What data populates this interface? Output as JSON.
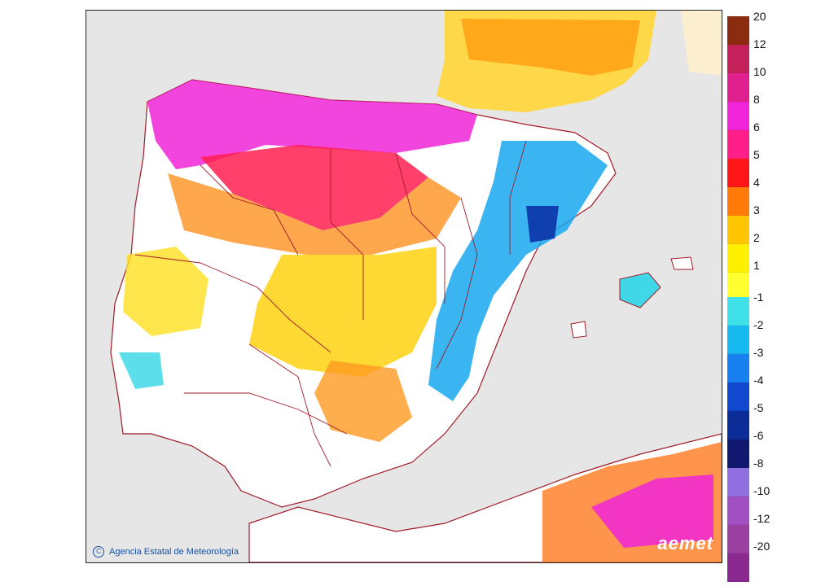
{
  "map": {
    "copyright": "Agencia Estatal de Meteorología",
    "logo_text": "aemet",
    "colors": {
      "sea": "#e6e6e6",
      "land_neutral": "#ffffff",
      "borders": "#a11a2a",
      "neighbor_land": "#fcefd0"
    }
  },
  "legend": {
    "positive": [
      {
        "label": "20",
        "color": "#8b2b10"
      },
      {
        "label": "12",
        "color": "#c4205a"
      },
      {
        "label": "10",
        "color": "#e0208e"
      },
      {
        "label": "8",
        "color": "#f024d8"
      },
      {
        "label": "6",
        "color": "#ff1e8a"
      },
      {
        "label": "5",
        "color": "#ff1616"
      },
      {
        "label": "4",
        "color": "#ff7a08"
      },
      {
        "label": "3",
        "color": "#ffc400"
      },
      {
        "label": "2",
        "color": "#fff000"
      },
      {
        "label": "1",
        "color": "#ffff30"
      }
    ],
    "negative": [
      {
        "label": "-1",
        "color": "#40e0e8"
      },
      {
        "label": "-2",
        "color": "#18b8f0"
      },
      {
        "label": "-3",
        "color": "#1880f0"
      },
      {
        "label": "-4",
        "color": "#1048d0"
      },
      {
        "label": "-5",
        "color": "#0c2c98"
      },
      {
        "label": "-6",
        "color": "#101870"
      },
      {
        "label": "-8",
        "color": "#9070e0"
      },
      {
        "label": "-10",
        "color": "#a050c0"
      },
      {
        "label": "-12",
        "color": "#9a40a0"
      },
      {
        "label": "-20",
        "color": "#8a2890"
      }
    ]
  }
}
